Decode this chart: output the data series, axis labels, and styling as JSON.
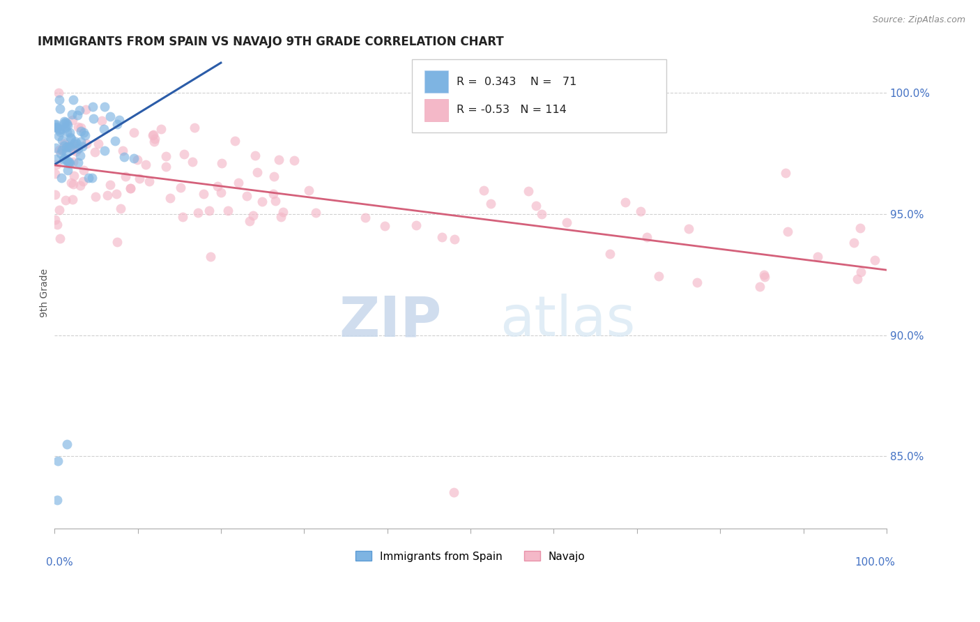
{
  "title": "IMMIGRANTS FROM SPAIN VS NAVAJO 9TH GRADE CORRELATION CHART",
  "source": "Source: ZipAtlas.com",
  "ylabel": "9th Grade",
  "right_ytick_values": [
    85.0,
    90.0,
    95.0,
    100.0
  ],
  "right_ytick_labels": [
    "85.0%",
    "90.0%",
    "95.0%",
    "100.0%"
  ],
  "blue_R": 0.343,
  "blue_N": 71,
  "pink_R": -0.53,
  "pink_N": 114,
  "blue_color": "#7eb4e2",
  "blue_edge_color": "#5a9ad4",
  "blue_line_color": "#2b5ca8",
  "pink_color": "#f4b8c8",
  "pink_edge_color": "#e890a8",
  "pink_line_color": "#d4607a",
  "watermark_zip": "ZIP",
  "watermark_atlas": "atlas",
  "legend_label_blue": "Immigrants from Spain",
  "legend_label_pink": "Navajo",
  "ylim_min": 82.0,
  "ylim_max": 101.5,
  "xlim_min": 0.0,
  "xlim_max": 1.0,
  "grid_color": "#d0d0d0",
  "axis_color": "#aaaaaa",
  "label_color": "#4472c4",
  "title_color": "#222222",
  "source_color": "#888888"
}
